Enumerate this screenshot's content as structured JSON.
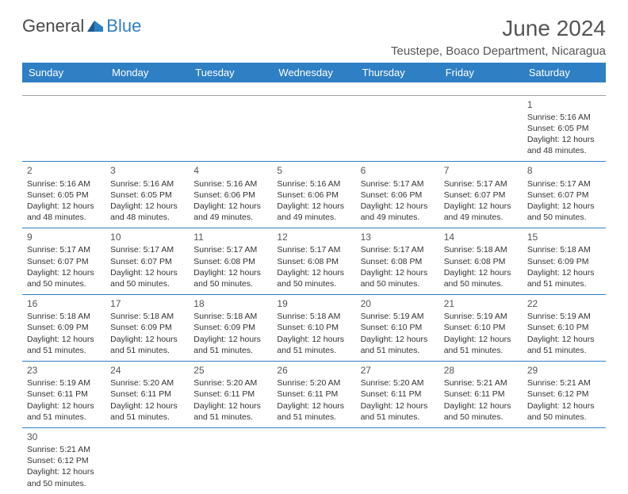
{
  "logo": {
    "text1": "General",
    "text2": "Blue"
  },
  "title": "June 2024",
  "location": "Teustepe, Boaco Department, Nicaragua",
  "colors": {
    "header_bg": "#2f7fc4",
    "header_text": "#ffffff",
    "rule": "#2f7fc4",
    "text": "#333333"
  },
  "day_headers": [
    "Sunday",
    "Monday",
    "Tuesday",
    "Wednesday",
    "Thursday",
    "Friday",
    "Saturday"
  ],
  "weeks": [
    [
      null,
      null,
      null,
      null,
      null,
      null,
      {
        "n": "1",
        "sr": "Sunrise: 5:16 AM",
        "ss": "Sunset: 6:05 PM",
        "d1": "Daylight: 12 hours",
        "d2": "and 48 minutes."
      }
    ],
    [
      {
        "n": "2",
        "sr": "Sunrise: 5:16 AM",
        "ss": "Sunset: 6:05 PM",
        "d1": "Daylight: 12 hours",
        "d2": "and 48 minutes."
      },
      {
        "n": "3",
        "sr": "Sunrise: 5:16 AM",
        "ss": "Sunset: 6:05 PM",
        "d1": "Daylight: 12 hours",
        "d2": "and 48 minutes."
      },
      {
        "n": "4",
        "sr": "Sunrise: 5:16 AM",
        "ss": "Sunset: 6:06 PM",
        "d1": "Daylight: 12 hours",
        "d2": "and 49 minutes."
      },
      {
        "n": "5",
        "sr": "Sunrise: 5:16 AM",
        "ss": "Sunset: 6:06 PM",
        "d1": "Daylight: 12 hours",
        "d2": "and 49 minutes."
      },
      {
        "n": "6",
        "sr": "Sunrise: 5:17 AM",
        "ss": "Sunset: 6:06 PM",
        "d1": "Daylight: 12 hours",
        "d2": "and 49 minutes."
      },
      {
        "n": "7",
        "sr": "Sunrise: 5:17 AM",
        "ss": "Sunset: 6:07 PM",
        "d1": "Daylight: 12 hours",
        "d2": "and 49 minutes."
      },
      {
        "n": "8",
        "sr": "Sunrise: 5:17 AM",
        "ss": "Sunset: 6:07 PM",
        "d1": "Daylight: 12 hours",
        "d2": "and 50 minutes."
      }
    ],
    [
      {
        "n": "9",
        "sr": "Sunrise: 5:17 AM",
        "ss": "Sunset: 6:07 PM",
        "d1": "Daylight: 12 hours",
        "d2": "and 50 minutes."
      },
      {
        "n": "10",
        "sr": "Sunrise: 5:17 AM",
        "ss": "Sunset: 6:07 PM",
        "d1": "Daylight: 12 hours",
        "d2": "and 50 minutes."
      },
      {
        "n": "11",
        "sr": "Sunrise: 5:17 AM",
        "ss": "Sunset: 6:08 PM",
        "d1": "Daylight: 12 hours",
        "d2": "and 50 minutes."
      },
      {
        "n": "12",
        "sr": "Sunrise: 5:17 AM",
        "ss": "Sunset: 6:08 PM",
        "d1": "Daylight: 12 hours",
        "d2": "and 50 minutes."
      },
      {
        "n": "13",
        "sr": "Sunrise: 5:17 AM",
        "ss": "Sunset: 6:08 PM",
        "d1": "Daylight: 12 hours",
        "d2": "and 50 minutes."
      },
      {
        "n": "14",
        "sr": "Sunrise: 5:18 AM",
        "ss": "Sunset: 6:08 PM",
        "d1": "Daylight: 12 hours",
        "d2": "and 50 minutes."
      },
      {
        "n": "15",
        "sr": "Sunrise: 5:18 AM",
        "ss": "Sunset: 6:09 PM",
        "d1": "Daylight: 12 hours",
        "d2": "and 51 minutes."
      }
    ],
    [
      {
        "n": "16",
        "sr": "Sunrise: 5:18 AM",
        "ss": "Sunset: 6:09 PM",
        "d1": "Daylight: 12 hours",
        "d2": "and 51 minutes."
      },
      {
        "n": "17",
        "sr": "Sunrise: 5:18 AM",
        "ss": "Sunset: 6:09 PM",
        "d1": "Daylight: 12 hours",
        "d2": "and 51 minutes."
      },
      {
        "n": "18",
        "sr": "Sunrise: 5:18 AM",
        "ss": "Sunset: 6:09 PM",
        "d1": "Daylight: 12 hours",
        "d2": "and 51 minutes."
      },
      {
        "n": "19",
        "sr": "Sunrise: 5:18 AM",
        "ss": "Sunset: 6:10 PM",
        "d1": "Daylight: 12 hours",
        "d2": "and 51 minutes."
      },
      {
        "n": "20",
        "sr": "Sunrise: 5:19 AM",
        "ss": "Sunset: 6:10 PM",
        "d1": "Daylight: 12 hours",
        "d2": "and 51 minutes."
      },
      {
        "n": "21",
        "sr": "Sunrise: 5:19 AM",
        "ss": "Sunset: 6:10 PM",
        "d1": "Daylight: 12 hours",
        "d2": "and 51 minutes."
      },
      {
        "n": "22",
        "sr": "Sunrise: 5:19 AM",
        "ss": "Sunset: 6:10 PM",
        "d1": "Daylight: 12 hours",
        "d2": "and 51 minutes."
      }
    ],
    [
      {
        "n": "23",
        "sr": "Sunrise: 5:19 AM",
        "ss": "Sunset: 6:11 PM",
        "d1": "Daylight: 12 hours",
        "d2": "and 51 minutes."
      },
      {
        "n": "24",
        "sr": "Sunrise: 5:20 AM",
        "ss": "Sunset: 6:11 PM",
        "d1": "Daylight: 12 hours",
        "d2": "and 51 minutes."
      },
      {
        "n": "25",
        "sr": "Sunrise: 5:20 AM",
        "ss": "Sunset: 6:11 PM",
        "d1": "Daylight: 12 hours",
        "d2": "and 51 minutes."
      },
      {
        "n": "26",
        "sr": "Sunrise: 5:20 AM",
        "ss": "Sunset: 6:11 PM",
        "d1": "Daylight: 12 hours",
        "d2": "and 51 minutes."
      },
      {
        "n": "27",
        "sr": "Sunrise: 5:20 AM",
        "ss": "Sunset: 6:11 PM",
        "d1": "Daylight: 12 hours",
        "d2": "and 51 minutes."
      },
      {
        "n": "28",
        "sr": "Sunrise: 5:21 AM",
        "ss": "Sunset: 6:11 PM",
        "d1": "Daylight: 12 hours",
        "d2": "and 50 minutes."
      },
      {
        "n": "29",
        "sr": "Sunrise: 5:21 AM",
        "ss": "Sunset: 6:12 PM",
        "d1": "Daylight: 12 hours",
        "d2": "and 50 minutes."
      }
    ],
    [
      {
        "n": "30",
        "sr": "Sunrise: 5:21 AM",
        "ss": "Sunset: 6:12 PM",
        "d1": "Daylight: 12 hours",
        "d2": "and 50 minutes."
      },
      null,
      null,
      null,
      null,
      null,
      null
    ]
  ]
}
